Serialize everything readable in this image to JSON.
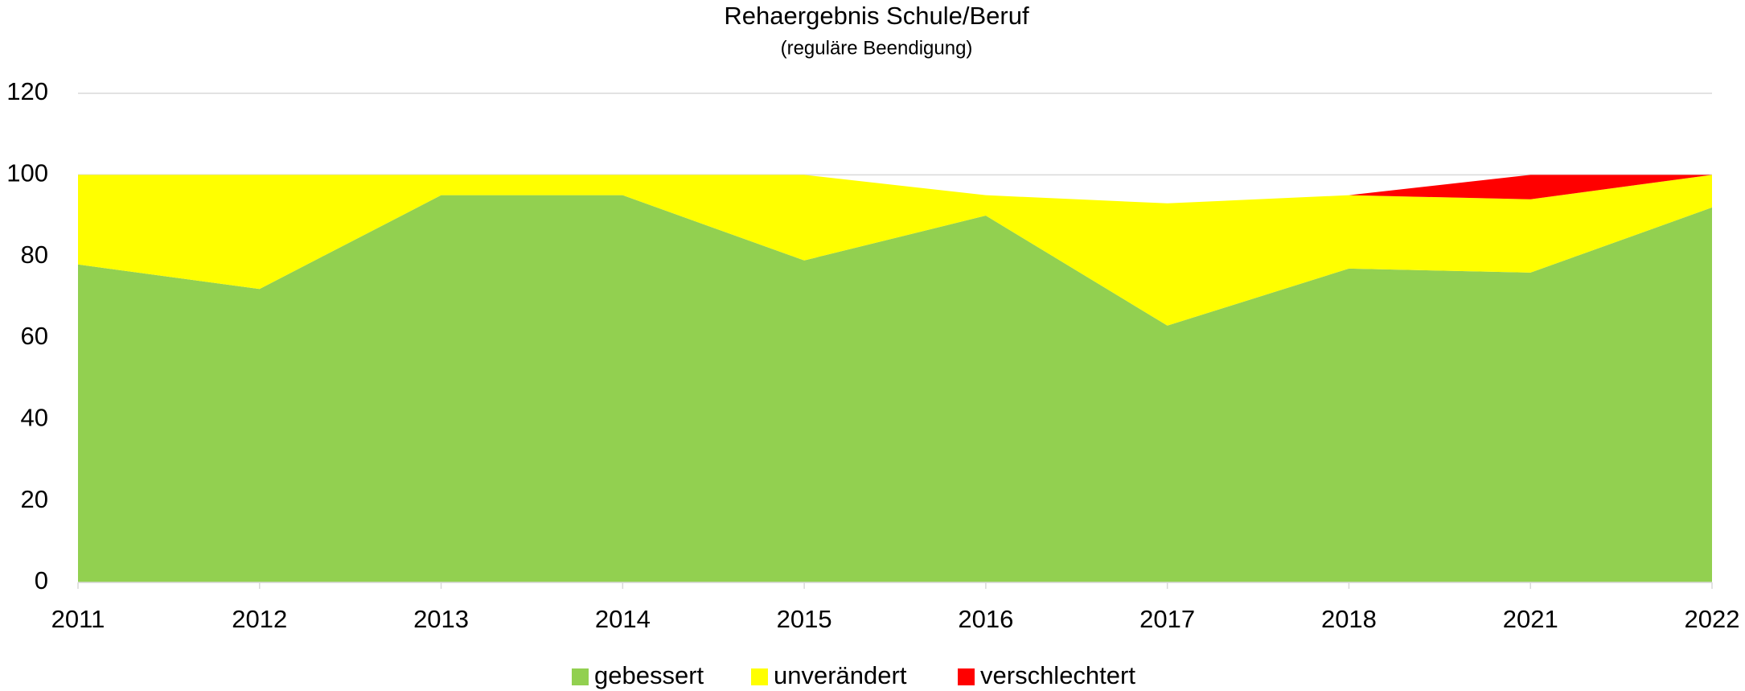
{
  "chart_data": {
    "type": "stacked_area",
    "title": "Rehaergebnis Schule/Beruf",
    "subtitle": "(reguläre Beendigung)",
    "categories": [
      "2011",
      "2012",
      "2013",
      "2014",
      "2015",
      "2016",
      "2017",
      "2018",
      "2021",
      "2022"
    ],
    "series": [
      {
        "name": "gebessert",
        "color": "#92d050",
        "values": [
          78,
          72,
          95,
          95,
          79,
          90,
          63,
          77,
          76,
          92
        ]
      },
      {
        "name": "unverändert",
        "color": "#ffff00",
        "values": [
          22,
          28,
          5,
          5,
          21,
          5,
          30,
          18,
          18,
          8
        ]
      },
      {
        "name": "verschlechtert",
        "color": "#ff0000",
        "values": [
          0,
          0,
          0,
          0,
          0,
          0,
          0,
          0,
          6,
          0
        ]
      }
    ],
    "ylim": [
      0,
      120
    ],
    "yticks": [
      0,
      20,
      40,
      60,
      80,
      100,
      120
    ],
    "grid": true,
    "legend": "bottom"
  }
}
